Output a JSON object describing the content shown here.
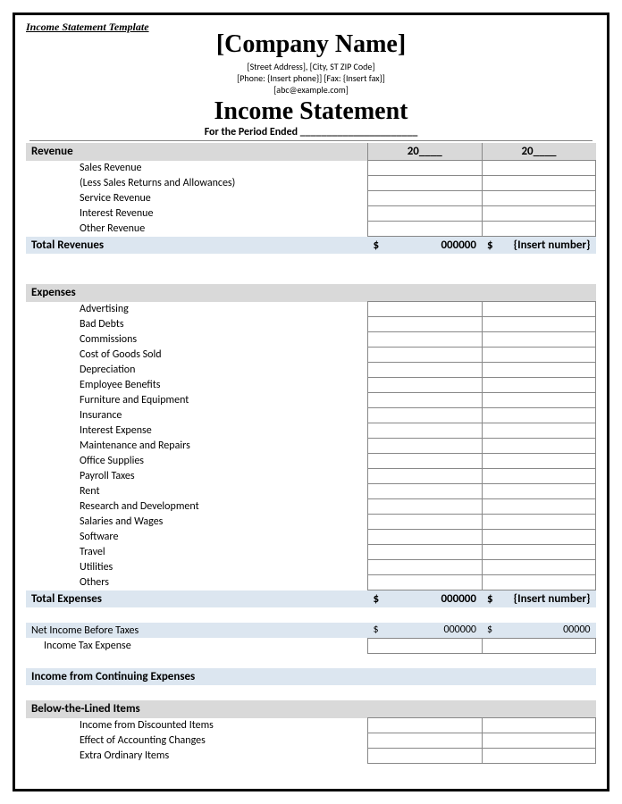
{
  "template_label": "Income Statement Template",
  "company_name": "[Company Name]",
  "contact": {
    "line1": "[Street Address], [City, ST ZIP Code]",
    "line2": "[Phone: {Insert phone}] [Fax: {Insert fax}]",
    "line3": "[abc@example.com]"
  },
  "title": "Income Statement",
  "period_label": "For the Period Ended ______________________",
  "year_header": {
    "y1": "20____",
    "y2": "20____"
  },
  "sections": {
    "revenue": {
      "header": "Revenue",
      "items": [
        "Sales Revenue",
        "(Less Sales Returns and Allowances)",
        "Service Revenue",
        "Interest Revenue",
        "Other Revenue"
      ],
      "total_label": "Total Revenues",
      "total_y1": {
        "sym": "$",
        "val": "000000"
      },
      "total_y2": {
        "sym": "$",
        "val": "{Insert number}"
      }
    },
    "expenses": {
      "header": "Expenses",
      "items": [
        "Advertising",
        "Bad Debts",
        "Commissions",
        "Cost of Goods Sold",
        "Depreciation",
        "Employee Benefits",
        "Furniture and Equipment",
        "Insurance",
        "Interest Expense",
        "Maintenance and Repairs",
        "Office Supplies",
        "Payroll Taxes",
        "Rent",
        "Research and Development",
        "Salaries and Wages",
        "Software",
        "Travel",
        "Utilities",
        "Others"
      ],
      "total_label": "Total Expenses",
      "total_y1": {
        "sym": "$",
        "val": "000000"
      },
      "total_y2": {
        "sym": "$",
        "val": "{Insert number}"
      }
    },
    "net": {
      "before_tax_label": "Net Income Before Taxes",
      "before_tax_y1": {
        "sym": "$",
        "val": "000000"
      },
      "before_tax_y2": {
        "sym": "$",
        "val": "00000"
      },
      "tax_expense_label": "Income Tax Expense"
    },
    "continuing": {
      "header": "Income from Continuing Expenses"
    },
    "below_line": {
      "header": "Below-the-Lined Items",
      "items": [
        "Income from Discounted Items",
        "Effect of Accounting Changes",
        "Extra Ordinary Items"
      ]
    }
  },
  "colors": {
    "gray_header": "#d9d9d9",
    "blue_total": "#dce6f0",
    "border": "#888888",
    "page_border": "#000000"
  }
}
